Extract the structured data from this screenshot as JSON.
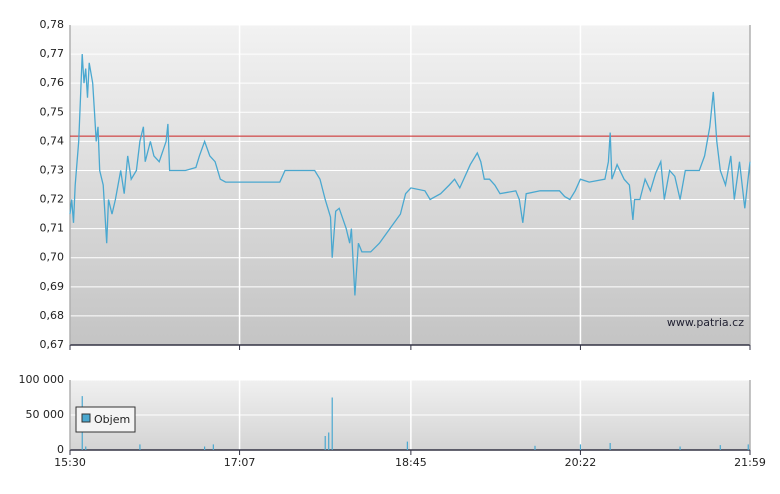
{
  "chart_data": [
    {
      "type": "line",
      "color": "#4aa8d0",
      "reference_line": 0.7418,
      "reference_color": "#cc2222",
      "annotation": "www.patria.cz",
      "ylim": [
        0.67,
        0.78
      ],
      "yticks": [
        {
          "value": 0.67,
          "label": "0,67"
        },
        {
          "value": 0.68,
          "label": "0,68"
        },
        {
          "value": 0.69,
          "label": "0,69"
        },
        {
          "value": 0.7,
          "label": "0,70"
        },
        {
          "value": 0.71,
          "label": "0,71"
        },
        {
          "value": 0.72,
          "label": "0,72"
        },
        {
          "value": 0.73,
          "label": "0,73"
        },
        {
          "value": 0.74,
          "label": "0,74"
        },
        {
          "value": 0.75,
          "label": "0,75"
        },
        {
          "value": 0.76,
          "label": "0,76"
        },
        {
          "value": 0.77,
          "label": "0,77"
        },
        {
          "value": 0.78,
          "label": "0,78"
        }
      ],
      "xlim": [
        0,
        389
      ],
      "x": [
        0,
        1,
        2,
        3,
        5,
        6,
        7,
        8,
        9,
        10,
        11,
        13,
        14,
        15,
        16,
        17,
        19,
        21,
        22,
        24,
        26,
        29,
        31,
        33,
        35,
        38,
        40,
        42,
        43,
        46,
        48,
        51,
        55,
        56,
        57,
        60,
        66,
        72,
        74,
        77,
        80,
        83,
        86,
        89,
        97,
        109,
        120,
        123,
        132,
        140,
        143,
        146,
        149,
        150,
        152,
        154,
        158,
        160,
        161,
        163,
        165,
        167,
        172,
        177,
        183,
        189,
        192,
        195,
        203,
        206,
        212,
        217,
        220,
        223,
        229,
        233,
        235,
        237,
        240,
        243,
        246,
        255,
        257,
        259,
        261,
        269,
        280,
        283,
        286,
        289,
        292,
        297,
        306,
        308,
        309,
        310,
        313,
        317,
        320,
        322,
        323,
        326,
        329,
        332,
        335,
        338,
        340,
        343,
        346,
        349,
        352,
        355,
        360,
        363,
        366,
        368,
        370,
        372,
        375,
        378,
        380,
        383,
        386,
        389
      ],
      "values": [
        0.715,
        0.72,
        0.712,
        0.725,
        0.74,
        0.755,
        0.77,
        0.76,
        0.765,
        0.755,
        0.767,
        0.76,
        0.75,
        0.74,
        0.745,
        0.73,
        0.725,
        0.705,
        0.72,
        0.715,
        0.72,
        0.73,
        0.722,
        0.735,
        0.727,
        0.73,
        0.74,
        0.745,
        0.733,
        0.74,
        0.735,
        0.733,
        0.74,
        0.746,
        0.73,
        0.73,
        0.73,
        0.731,
        0.735,
        0.74,
        0.735,
        0.733,
        0.727,
        0.726,
        0.726,
        0.726,
        0.726,
        0.73,
        0.73,
        0.73,
        0.727,
        0.72,
        0.714,
        0.7,
        0.716,
        0.717,
        0.71,
        0.705,
        0.71,
        0.687,
        0.705,
        0.702,
        0.702,
        0.705,
        0.71,
        0.715,
        0.722,
        0.724,
        0.723,
        0.72,
        0.722,
        0.725,
        0.727,
        0.724,
        0.732,
        0.736,
        0.733,
        0.727,
        0.727,
        0.725,
        0.722,
        0.723,
        0.72,
        0.712,
        0.722,
        0.723,
        0.723,
        0.721,
        0.72,
        0.723,
        0.727,
        0.726,
        0.727,
        0.733,
        0.743,
        0.727,
        0.732,
        0.727,
        0.725,
        0.713,
        0.72,
        0.72,
        0.727,
        0.723,
        0.729,
        0.733,
        0.72,
        0.73,
        0.728,
        0.72,
        0.73,
        0.73,
        0.73,
        0.735,
        0.745,
        0.757,
        0.74,
        0.73,
        0.725,
        0.735,
        0.72,
        0.733,
        0.717,
        0.733
      ]
    },
    {
      "type": "bar",
      "legend": "upper left",
      "xlim": [
        0,
        389
      ],
      "xticks": [
        {
          "value": 0,
          "label": "15:30"
        },
        {
          "value": 97,
          "label": "17:07"
        },
        {
          "value": 195,
          "label": "18:45"
        },
        {
          "value": 292,
          "label": "20:22"
        },
        {
          "value": 389,
          "label": "21:59"
        }
      ],
      "ylim": [
        0,
        100000
      ],
      "yticks": [
        0,
        {
          "value": 50000,
          "label": "50 000"
        },
        {
          "value": 100000,
          "label": "100 000"
        }
      ],
      "series": [
        {
          "name": "Objem",
          "color": "#4aa8d0",
          "x": [
            7,
            9,
            40,
            77,
            82,
            146,
            148,
            150,
            193,
            266,
            292,
            309,
            349,
            372,
            388
          ],
          "values": [
            77000,
            5000,
            8000,
            5000,
            8000,
            20000,
            25000,
            75000,
            12000,
            6000,
            8000,
            10000,
            5000,
            7000,
            8000
          ]
        }
      ]
    }
  ]
}
